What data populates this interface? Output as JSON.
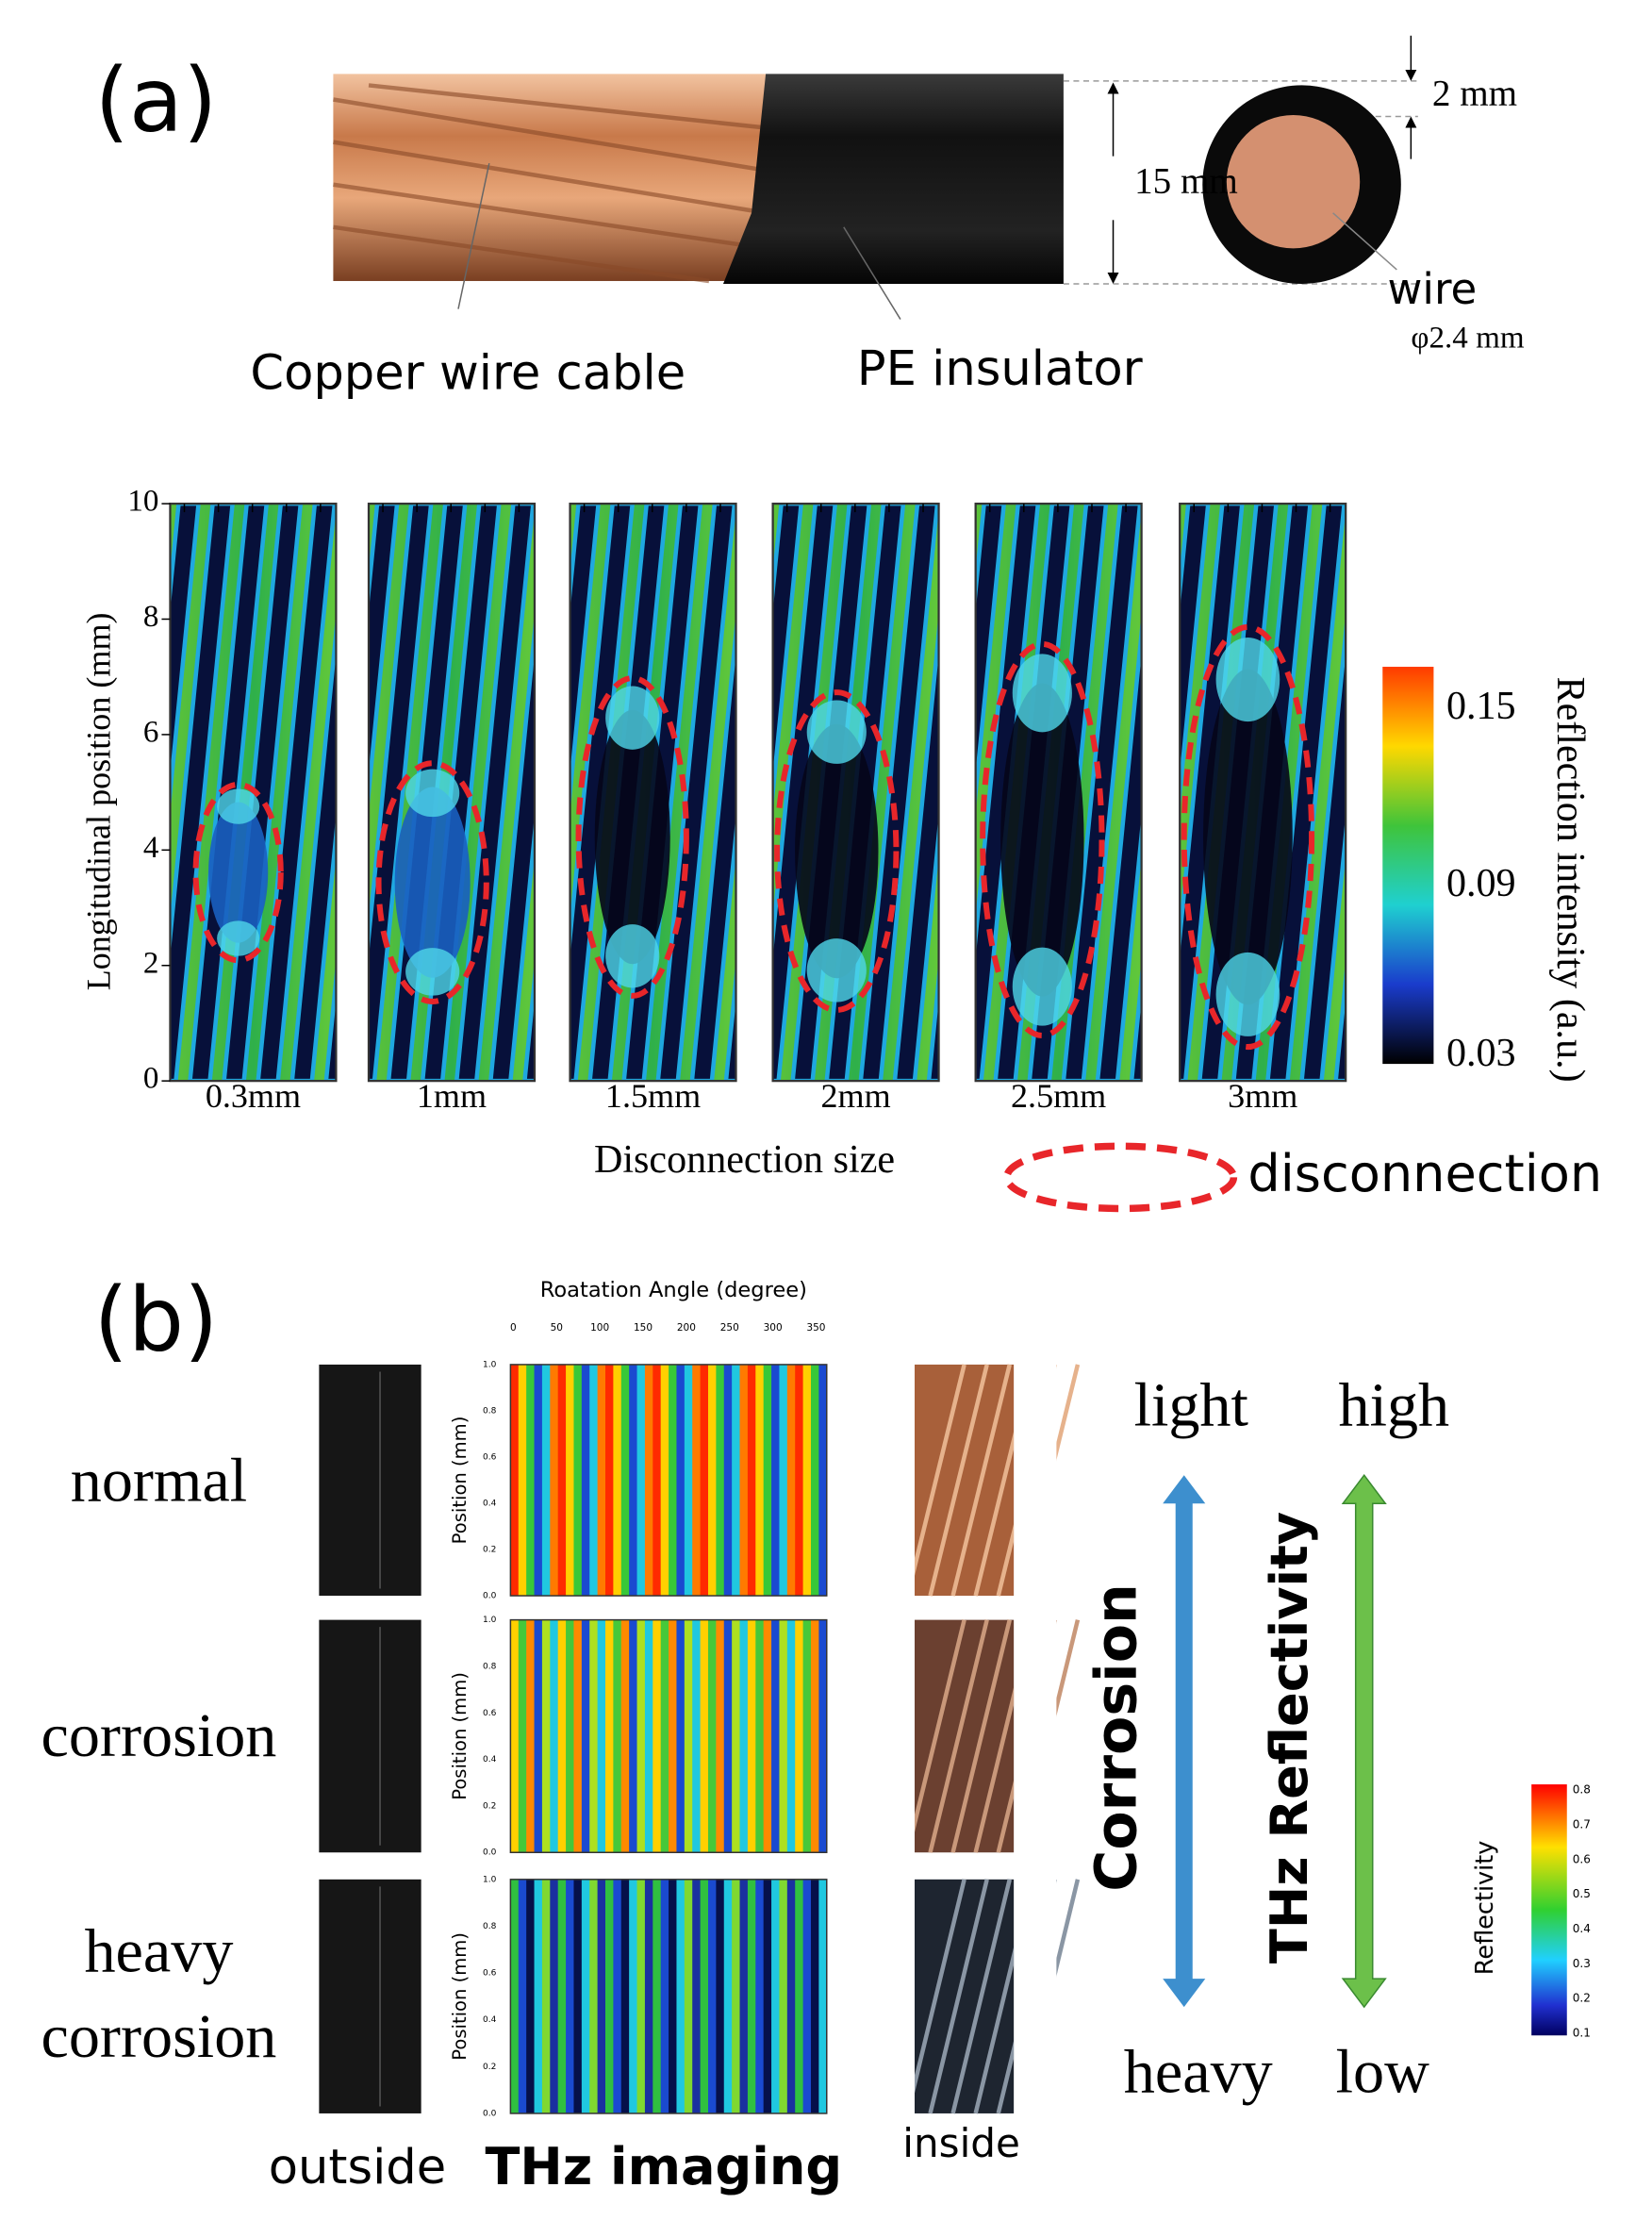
{
  "panel_a": {
    "label": "(a)",
    "photo": {
      "cable_label": "Copper wire cable",
      "insulator_label": "PE insulator",
      "diameter": "15 mm",
      "thickness": "2 mm",
      "wire_label": "wire",
      "wire_diameter": "φ2.4 mm"
    },
    "heatmaps": {
      "y_axis_label": "Longitudinal position (mm)",
      "yticks": [
        "0",
        "2",
        "4",
        "6",
        "8",
        "10"
      ],
      "panels": [
        "0.3mm",
        "1mm",
        "1.5mm",
        "2mm",
        "2.5mm",
        "3mm"
      ],
      "x_axis_label": "Disconnection size",
      "colorbar_label": "Reflection intensity (a.u.)",
      "colorbar_ticks": [
        "0.15",
        "0.09",
        "0.03"
      ],
      "legend": "disconnection"
    }
  },
  "panel_b": {
    "label": "(b)",
    "rows": [
      [
        "normal"
      ],
      [
        "corrosion"
      ],
      [
        "heavy",
        "corrosion"
      ]
    ],
    "columns": [
      "outside",
      "THz imaging",
      "inside"
    ],
    "x_axis_label": "Roatation Angle (degree)",
    "xticks": [
      "0",
      "50",
      "100",
      "150",
      "200",
      "250",
      "300",
      "350"
    ],
    "y_axis_label": "Position (mm)",
    "yticks": [
      "0.0",
      "0.2",
      "0.4",
      "0.6",
      "0.8",
      "1.0"
    ],
    "corrosion_scale": {
      "top": "light",
      "bottom": "heavy",
      "label": "Corrosion"
    },
    "reflectivity_scale": {
      "top": "high",
      "bottom": "low",
      "label": "THz Reflectivity"
    },
    "colorbar_label": "Reflectivity",
    "colorbar_ticks": [
      "0.8",
      "0.7",
      "0.6",
      "0.5",
      "0.4",
      "0.3",
      "0.2",
      "0.1"
    ]
  }
}
